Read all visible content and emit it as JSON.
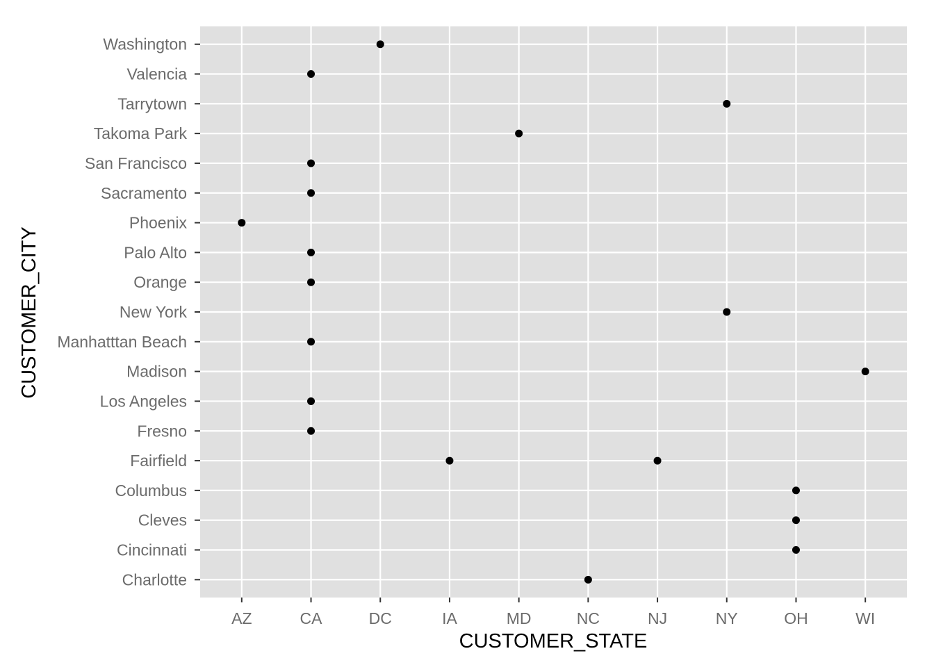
{
  "chart_data": {
    "type": "scatter",
    "xlabel": "CUSTOMER_STATE",
    "ylabel": "CUSTOMER_CITY",
    "x_categories": [
      "AZ",
      "CA",
      "DC",
      "IA",
      "MD",
      "NC",
      "NJ",
      "NY",
      "OH",
      "WI"
    ],
    "y_categories": [
      "Charlotte",
      "Cincinnati",
      "Cleves",
      "Columbus",
      "Fairfield",
      "Fresno",
      "Los Angeles",
      "Madison",
      "Manhatttan Beach",
      "New York",
      "Orange",
      "Palo Alto",
      "Phoenix",
      "Sacramento",
      "San Francisco",
      "Takoma Park",
      "Tarrytown",
      "Valencia",
      "Washington"
    ],
    "points": [
      {
        "x": "DC",
        "y": "Washington"
      },
      {
        "x": "CA",
        "y": "Valencia"
      },
      {
        "x": "NY",
        "y": "Tarrytown"
      },
      {
        "x": "MD",
        "y": "Takoma Park"
      },
      {
        "x": "CA",
        "y": "San Francisco"
      },
      {
        "x": "CA",
        "y": "Sacramento"
      },
      {
        "x": "AZ",
        "y": "Phoenix"
      },
      {
        "x": "CA",
        "y": "Palo Alto"
      },
      {
        "x": "CA",
        "y": "Orange"
      },
      {
        "x": "NY",
        "y": "New York"
      },
      {
        "x": "CA",
        "y": "Manhatttan Beach"
      },
      {
        "x": "WI",
        "y": "Madison"
      },
      {
        "x": "CA",
        "y": "Los Angeles"
      },
      {
        "x": "CA",
        "y": "Fresno"
      },
      {
        "x": "IA",
        "y": "Fairfield"
      },
      {
        "x": "NJ",
        "y": "Fairfield"
      },
      {
        "x": "OH",
        "y": "Columbus"
      },
      {
        "x": "OH",
        "y": "Cleves"
      },
      {
        "x": "OH",
        "y": "Cincinnati"
      },
      {
        "x": "NC",
        "y": "Charlotte"
      }
    ],
    "grid": true,
    "panel_background": "#e0e0e0",
    "grid_color": "#ffffff",
    "point_color": "#000000",
    "tick_label_color": "#6b6b6b"
  }
}
